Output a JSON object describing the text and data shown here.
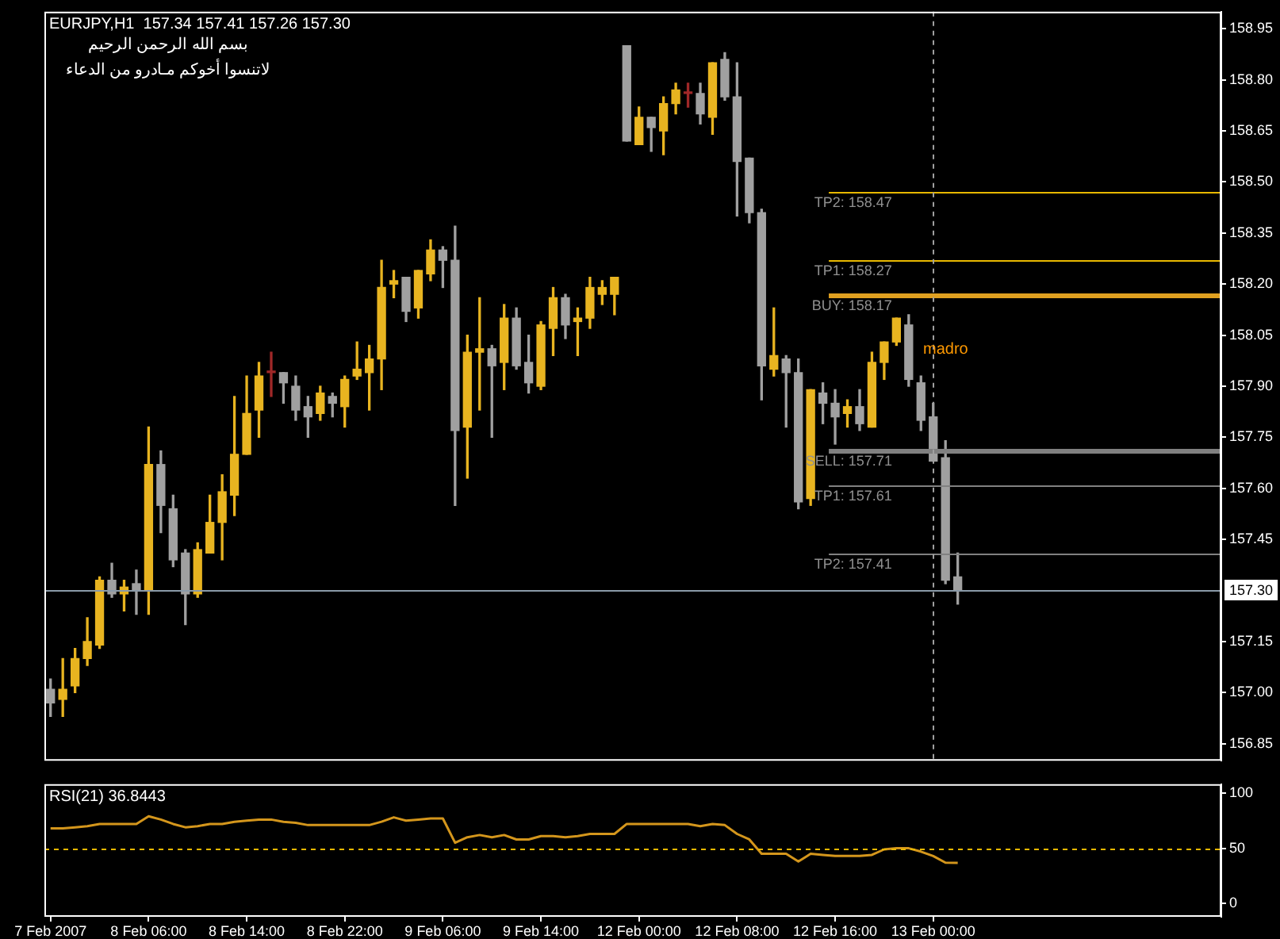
{
  "chart_data": [
    {
      "type": "candlestick",
      "title": "EURJPY,H1  157.34 157.41 157.26 157.30",
      "annotations": [
        "بسم الله الرحمن الرحيم",
        "لاتنسوا أخوكم مـادرو من الدعاء",
        "madro"
      ],
      "categories": [
        "7 Feb 2007",
        null,
        null,
        null,
        null,
        null,
        null,
        null,
        "8 Feb 06:00",
        null,
        null,
        null,
        null,
        null,
        null,
        null,
        "8 Feb 14:00",
        null,
        null,
        null,
        null,
        null,
        null,
        null,
        "8 Feb 22:00",
        null,
        null,
        null,
        null,
        null,
        null,
        null,
        "9 Feb 06:00",
        null,
        null,
        null,
        null,
        null,
        null,
        null,
        "9 Feb 14:00",
        null,
        null,
        null,
        null,
        null,
        null,
        null,
        "12 Feb 00:00",
        null,
        null,
        null,
        null,
        null,
        null,
        null,
        "12 Feb 08:00",
        null,
        null,
        null,
        null,
        null,
        null,
        null,
        "12 Feb 16:00",
        null,
        null,
        null,
        null,
        null,
        null,
        null,
        "13 Feb 00:00",
        null,
        null,
        null,
        null,
        null,
        null,
        null,
        null,
        null,
        null,
        null,
        null,
        null,
        null,
        null,
        null,
        null,
        null,
        null,
        null,
        null,
        null,
        null
      ],
      "ohlc": [
        [
          157.01,
          157.04,
          156.93,
          156.97
        ],
        [
          156.98,
          157.1,
          156.93,
          157.01
        ],
        [
          157.02,
          157.13,
          157.0,
          157.1
        ],
        [
          157.1,
          157.22,
          157.08,
          157.15
        ],
        [
          157.14,
          157.34,
          157.13,
          157.33
        ],
        [
          157.33,
          157.38,
          157.28,
          157.29
        ],
        [
          157.29,
          157.33,
          157.24,
          157.31
        ],
        [
          157.32,
          157.36,
          157.23,
          157.3
        ],
        [
          157.3,
          157.78,
          157.23,
          157.67
        ],
        [
          157.67,
          157.71,
          157.47,
          157.55
        ],
        [
          157.54,
          157.58,
          157.37,
          157.39
        ],
        [
          157.41,
          157.42,
          157.2,
          157.29
        ],
        [
          157.29,
          157.44,
          157.28,
          157.42
        ],
        [
          157.41,
          157.58,
          157.41,
          157.5
        ],
        [
          157.5,
          157.64,
          157.39,
          157.59
        ],
        [
          157.58,
          157.87,
          157.52,
          157.7
        ],
        [
          157.7,
          157.93,
          157.7,
          157.82
        ],
        [
          157.83,
          157.97,
          157.75,
          157.93
        ],
        [
          157.94,
          158.0,
          157.87,
          157.94
        ],
        [
          157.94,
          157.94,
          157.85,
          157.91
        ],
        [
          157.9,
          157.93,
          157.8,
          157.83
        ],
        [
          157.84,
          157.87,
          157.75,
          157.81
        ],
        [
          157.82,
          157.9,
          157.8,
          157.88
        ],
        [
          157.87,
          157.88,
          157.81,
          157.85
        ],
        [
          157.84,
          157.93,
          157.78,
          157.92
        ],
        [
          157.93,
          158.03,
          157.92,
          157.95
        ],
        [
          157.94,
          158.02,
          157.83,
          157.98
        ],
        [
          157.98,
          158.27,
          157.89,
          158.19
        ],
        [
          158.2,
          158.24,
          158.16,
          158.21
        ],
        [
          158.22,
          158.22,
          158.09,
          158.12
        ],
        [
          158.13,
          158.24,
          158.1,
          158.24
        ],
        [
          158.23,
          158.33,
          158.21,
          158.3
        ],
        [
          158.3,
          158.31,
          158.19,
          158.27
        ],
        [
          158.27,
          158.37,
          157.55,
          157.77
        ],
        [
          157.78,
          158.05,
          157.63,
          158.0
        ],
        [
          158.0,
          158.16,
          157.83,
          158.01
        ],
        [
          158.01,
          158.02,
          157.75,
          157.96
        ],
        [
          157.97,
          158.14,
          157.89,
          158.1
        ],
        [
          158.1,
          158.13,
          157.95,
          157.96
        ],
        [
          157.97,
          158.05,
          157.88,
          157.91
        ],
        [
          157.9,
          158.09,
          157.89,
          158.08
        ],
        [
          158.07,
          158.19,
          157.99,
          158.16
        ],
        [
          158.16,
          158.17,
          158.04,
          158.08
        ],
        [
          158.09,
          158.13,
          157.99,
          158.1
        ],
        [
          158.1,
          158.22,
          158.07,
          158.19
        ],
        [
          158.17,
          158.21,
          158.14,
          158.19
        ],
        [
          158.17,
          158.22,
          158.11,
          158.22
        ],
        [
          158.9,
          158.9,
          158.62,
          158.62
        ],
        [
          158.61,
          158.72,
          158.61,
          158.69
        ],
        [
          158.69,
          158.69,
          158.59,
          158.66
        ],
        [
          158.65,
          158.75,
          158.58,
          158.73
        ],
        [
          158.73,
          158.79,
          158.7,
          158.77
        ],
        [
          158.76,
          158.79,
          158.72,
          158.76
        ],
        [
          158.76,
          158.79,
          158.67,
          158.7
        ],
        [
          158.69,
          158.85,
          158.64,
          158.85
        ],
        [
          158.86,
          158.88,
          158.74,
          158.75
        ],
        [
          158.75,
          158.85,
          158.4,
          158.56
        ],
        [
          158.57,
          158.57,
          158.38,
          158.41
        ],
        [
          158.41,
          158.42,
          157.86,
          157.96
        ],
        [
          157.95,
          158.13,
          157.93,
          157.99
        ],
        [
          157.98,
          157.99,
          157.78,
          157.94
        ],
        [
          157.94,
          157.98,
          157.54,
          157.56
        ],
        [
          157.57,
          157.89,
          157.55,
          157.89
        ],
        [
          157.88,
          157.91,
          157.79,
          157.85
        ],
        [
          157.85,
          157.89,
          157.73,
          157.81
        ],
        [
          157.82,
          157.86,
          157.78,
          157.84
        ],
        [
          157.84,
          157.89,
          157.77,
          157.79
        ],
        [
          157.78,
          158.0,
          157.78,
          157.97
        ],
        [
          157.97,
          158.03,
          157.92,
          158.03
        ],
        [
          158.03,
          158.1,
          158.02,
          158.1
        ],
        [
          158.08,
          158.11,
          157.9,
          157.92
        ],
        [
          157.91,
          157.93,
          157.77,
          157.8
        ],
        [
          157.81,
          157.85,
          157.68,
          157.68
        ],
        [
          157.69,
          157.74,
          157.32,
          157.33
        ],
        [
          157.34,
          157.41,
          157.26,
          157.3
        ],
        null,
        null,
        null,
        null,
        null,
        null,
        null,
        null,
        null,
        null,
        null,
        null,
        null,
        null,
        null,
        null,
        null,
        null,
        null,
        null,
        null
      ],
      "colors": [
        "#a0a0a0",
        "#e8b420",
        "#e8b420",
        "#e8b420",
        "#e8b420",
        "#a0a0a0",
        "#e8b420",
        "#a0a0a0",
        "#e8b420",
        "#a0a0a0",
        "#a0a0a0",
        "#a0a0a0",
        "#e8b420",
        "#e8b420",
        "#e8b420",
        "#e8b420",
        "#e8b420",
        "#e8b420",
        "#a02828",
        "#a0a0a0",
        "#a0a0a0",
        "#a0a0a0",
        "#e8b420",
        "#a0a0a0",
        "#e8b420",
        "#e8b420",
        "#e8b420",
        "#e8b420",
        "#e8b420",
        "#a0a0a0",
        "#e8b420",
        "#e8b420",
        "#a0a0a0",
        "#a0a0a0",
        "#e8b420",
        "#e8b420",
        "#a0a0a0",
        "#e8b420",
        "#a0a0a0",
        "#a0a0a0",
        "#e8b420",
        "#e8b420",
        "#a0a0a0",
        "#e8b420",
        "#e8b420",
        "#e8b420",
        "#e8b420",
        "#a0a0a0",
        "#e8b420",
        "#a0a0a0",
        "#e8b420",
        "#e8b420",
        "#a02828",
        "#a0a0a0",
        "#e8b420",
        "#a0a0a0",
        "#a0a0a0",
        "#a0a0a0",
        "#a0a0a0",
        "#e8b420",
        "#a0a0a0",
        "#a0a0a0",
        "#e8b420",
        "#a0a0a0",
        "#a0a0a0",
        "#e8b420",
        "#a0a0a0",
        "#e8b420",
        "#e8b420",
        "#e8b420",
        "#a0a0a0",
        "#a0a0a0",
        "#a0a0a0",
        "#a0a0a0",
        "#a0a0a0",
        null,
        null,
        null,
        null,
        null,
        null,
        null,
        null,
        null,
        null,
        null,
        null,
        null,
        null,
        null,
        null,
        null,
        null,
        null,
        null,
        null
      ],
      "ylim": [
        156.8,
        159.0
      ],
      "yticks": [
        158.95,
        {
          "value": 158.8,
          "label": "158.80"
        },
        158.65,
        {
          "value": 158.5,
          "label": "158.50"
        },
        158.35,
        {
          "value": 158.2,
          "label": "158.20"
        },
        158.05,
        {
          "value": 157.9,
          "label": "157.90"
        },
        157.75,
        {
          "value": 157.6,
          "label": "157.60"
        },
        157.45,
        157.15,
        {
          "value": 157,
          "label": "157.00"
        },
        156.85
      ],
      "ref_lines": [
        {
          "axis": "y",
          "value": 158.47,
          "label": "TP2: 158.47",
          "color": "#e8b800"
        },
        {
          "axis": "y",
          "value": 158.27,
          "label": "TP1: 158.27",
          "color": "#e8b800"
        },
        {
          "axis": "y",
          "value": 158.17,
          "label": "BUY: 158.17",
          "color": "#e0a020"
        },
        {
          "axis": "y",
          "value": 157.71,
          "label": "SELL: 157.71",
          "color": "#808080"
        },
        {
          "axis": "y",
          "value": 157.61,
          "label": "TP1: 157.61",
          "color": "#808080"
        },
        {
          "axis": "y",
          "value": 157.41,
          "label": "TP2: 157.41",
          "color": "#808080"
        },
        {
          "axis": "y",
          "value": 157.3,
          "label": "157.30",
          "color": "#8a9aa8"
        },
        {
          "axis": "x",
          "value": "13 Feb 00:00",
          "color": "#a0a0a0",
          "line_style": "dashed"
        }
      ],
      "tick_labels": "y"
    },
    {
      "type": "line",
      "title": "RSI(21) 36.8443",
      "categories": [
        "7 Feb 2007",
        null,
        null,
        null,
        null,
        null,
        null,
        null,
        "8 Feb 06:00",
        null,
        null,
        null,
        null,
        null,
        null,
        null,
        "8 Feb 14:00",
        null,
        null,
        null,
        null,
        null,
        null,
        null,
        "8 Feb 22:00",
        null,
        null,
        null,
        null,
        null,
        null,
        null,
        "9 Feb 06:00",
        null,
        null,
        null,
        null,
        null,
        null,
        null,
        "9 Feb 14:00",
        null,
        null,
        null,
        null,
        null,
        null,
        null,
        "12 Feb 00:00",
        null,
        null,
        null,
        null,
        null,
        null,
        null,
        "12 Feb 08:00",
        null,
        null,
        null,
        null,
        null,
        null,
        null,
        "12 Feb 16:00",
        null,
        null,
        null,
        null,
        null,
        null,
        null,
        "13 Feb 00:00",
        null,
        null,
        null,
        null,
        null,
        null,
        null,
        null,
        null,
        null,
        null,
        null,
        null,
        null,
        null,
        null,
        null,
        null,
        null,
        null,
        null,
        null,
        null
      ],
      "values": [
        68,
        68,
        69,
        70,
        72,
        72,
        72,
        72,
        79,
        76,
        72,
        69,
        70,
        72,
        72,
        74,
        75,
        76,
        76,
        74,
        73,
        71,
        71,
        71,
        71,
        71,
        71,
        74,
        78,
        75,
        76,
        77,
        77,
        55,
        60,
        62,
        60,
        62,
        58,
        58,
        61,
        61,
        60,
        61,
        63,
        63,
        63,
        72,
        72,
        72,
        72,
        72,
        72,
        70,
        72,
        71,
        63,
        58,
        45,
        45,
        45,
        38,
        45,
        44,
        43,
        43,
        43,
        44,
        49,
        50,
        50,
        47,
        43,
        37,
        36.8443,
        null,
        null,
        null,
        null,
        null,
        null,
        null,
        null,
        null,
        null,
        null,
        null,
        null,
        null,
        null,
        null,
        null,
        null,
        null,
        null,
        null
      ],
      "color": "#d4961c",
      "ylim": [
        -12,
        108
      ],
      "yticks": [
        0,
        50,
        100
      ],
      "ref_lines": [
        {
          "axis": "y",
          "value": 50,
          "color": "#e8b800",
          "line_style": "dashed"
        }
      ]
    }
  ]
}
